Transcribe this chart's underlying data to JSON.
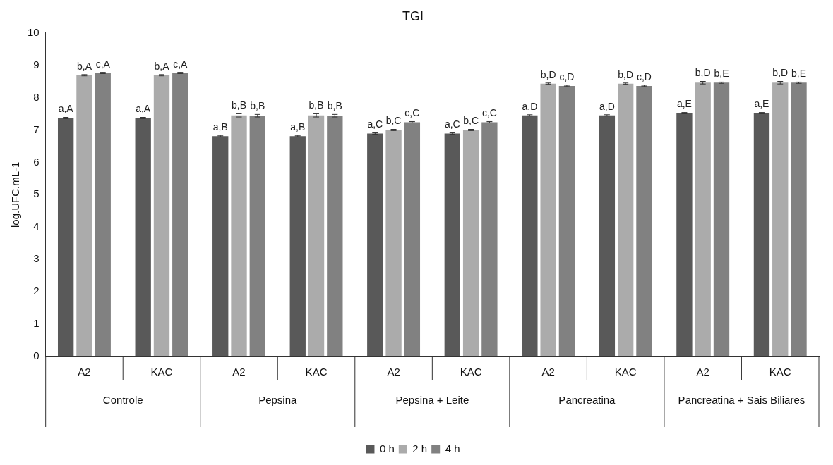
{
  "chart_data": {
    "type": "bar",
    "title": "TGI",
    "ylabel": "log.UFC.mL-1",
    "categories": [
      "A2",
      "KAC",
      "A2",
      "KAC",
      "A2",
      "KAC",
      "A2",
      "KAC",
      "A2",
      "KAC"
    ],
    "series": [
      {
        "name": "0 h",
        "color": "#595959",
        "values": [
          7.37,
          7.37,
          6.81,
          6.81,
          6.89,
          6.89,
          7.45,
          7.45,
          7.52,
          7.52
        ],
        "errors": [
          0.02,
          0.02,
          0.02,
          0.02,
          0.02,
          0.02,
          0.02,
          0.02,
          0.02,
          0.02
        ],
        "value_labels": [
          "a,A",
          "a,A",
          "a,B",
          "a,B",
          "a,C",
          "a,C",
          "a,D",
          "a,D",
          "a,E",
          "a,E"
        ]
      },
      {
        "name": "2 h",
        "color": "#ababab",
        "values": [
          8.69,
          8.69,
          7.45,
          7.45,
          7.0,
          7.0,
          8.43,
          8.43,
          8.46,
          8.46
        ],
        "errors": [
          0.02,
          0.02,
          0.05,
          0.05,
          0.02,
          0.02,
          0.02,
          0.02,
          0.04,
          0.04
        ],
        "value_labels": [
          "b,A",
          "b,A",
          "b,B",
          "b,B",
          "b,C",
          "b,C",
          "b,D",
          "b,D",
          "b,D",
          "b,D"
        ]
      },
      {
        "name": "4 h",
        "color": "#818181",
        "values": [
          8.76,
          8.76,
          7.44,
          7.44,
          7.24,
          7.24,
          8.36,
          8.36,
          8.46,
          8.46
        ],
        "errors": [
          0.02,
          0.02,
          0.04,
          0.04,
          0.02,
          0.02,
          0.02,
          0.02,
          0.02,
          0.02
        ],
        "value_labels": [
          "c,A",
          "c,A",
          "b,B",
          "b,B",
          "c,C",
          "c,C",
          "c,D",
          "c,D",
          "b,E",
          "b,E"
        ]
      }
    ],
    "annotations": [
      "Controle",
      "Pepsina",
      "Pepsina + Leite",
      "Pancreatina",
      "Pancreatina + Sais Biliares"
    ],
    "ylim": [
      0,
      10
    ],
    "yticks": [
      0,
      1,
      2,
      3,
      4,
      5,
      6,
      7,
      8,
      9,
      10
    ],
    "grid": false,
    "legend": "bottom"
  }
}
